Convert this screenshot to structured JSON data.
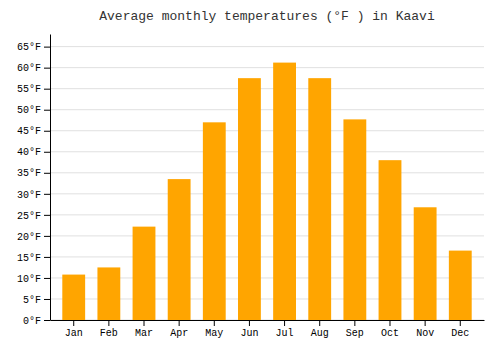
{
  "chart_data": {
    "type": "bar",
    "title": "Average monthly temperatures (°F ) in Kaavi",
    "categories": [
      "Jan",
      "Feb",
      "Mar",
      "Apr",
      "May",
      "Jun",
      "Jul",
      "Aug",
      "Sep",
      "Oct",
      "Nov",
      "Dec"
    ],
    "values": [
      10.8,
      12.5,
      22.2,
      33.5,
      47.0,
      57.5,
      61.2,
      57.5,
      47.7,
      38.0,
      26.8,
      16.5
    ],
    "color": "#FFA500",
    "ylim": [
      0,
      68
    ],
    "yticks": [
      {
        "value": 0,
        "label": "0°F"
      },
      {
        "value": 5,
        "label": "5°F"
      },
      {
        "value": 10,
        "label": "10°F"
      },
      {
        "value": 15,
        "label": "15°F"
      },
      {
        "value": 20,
        "label": "20°F"
      },
      {
        "value": 25,
        "label": "25°F"
      },
      {
        "value": 30,
        "label": "30°F"
      },
      {
        "value": 35,
        "label": "35°F"
      },
      {
        "value": 40,
        "label": "40°F"
      },
      {
        "value": 45,
        "label": "45°F"
      },
      {
        "value": 50,
        "label": "50°F"
      },
      {
        "value": 55,
        "label": "55°F"
      },
      {
        "value": 60,
        "label": "60°F"
      },
      {
        "value": 65,
        "label": "65°F"
      }
    ],
    "grid": true
  }
}
